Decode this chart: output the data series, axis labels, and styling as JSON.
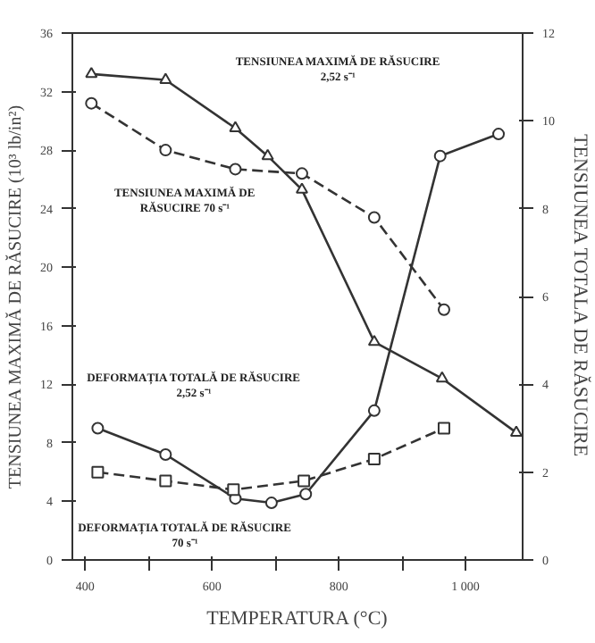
{
  "chart_data": {
    "type": "line",
    "xlabel": "TEMPERATURA (°C)",
    "ylabel": "TENSIUNEA MAXIMĂ DE RĂSUCIRE (10³ lb/in²)",
    "y2label": "TENSIUNEA TOTALA DE RĂSUCIRE",
    "xlim": [
      380,
      1090
    ],
    "xticks": [
      400,
      {
        "value": 500,
        "label": null
      },
      600,
      {
        "value": 700,
        "label": null
      },
      800,
      {
        "value": 900,
        "label": null
      },
      {
        "value": 1000,
        "label": "1 000"
      }
    ],
    "ylim": [
      0,
      36
    ],
    "yticks": [
      0,
      4,
      8,
      12,
      16,
      20,
      24,
      28,
      32,
      36
    ],
    "y2lim": [
      0,
      12
    ],
    "y2ticks": [
      0,
      2,
      4,
      6,
      8,
      10,
      12
    ],
    "grid": false,
    "series": [
      {
        "color": "#333333",
        "marker": "triangle",
        "line_style": "solid",
        "x": [
          410,
          527,
          637,
          688,
          742,
          856,
          963,
          1080
        ],
        "values": [
          33.2,
          32.8,
          29.5,
          27.6,
          25.3,
          14.9,
          12.4,
          8.7
        ]
      },
      {
        "color": "#333333",
        "marker": "circle",
        "line_style": "dashed",
        "x": [
          410,
          527,
          637,
          742,
          856,
          966
        ],
        "values": [
          31.2,
          28.0,
          26.7,
          26.4,
          23.4,
          17.1
        ]
      },
      {
        "color": "#333333",
        "marker": "circle",
        "line_style": "solid",
        "axis": "y2",
        "x": [
          420,
          527,
          637,
          694,
          748,
          856,
          960,
          1052
        ],
        "values": [
          3.0,
          2.4,
          1.4,
          1.3,
          1.5,
          3.4,
          9.2,
          9.7
        ]
      },
      {
        "color": "#333333",
        "marker": "square",
        "line_style": "dashed",
        "axis": "y2",
        "x": [
          420,
          527,
          634,
          745,
          856,
          966
        ],
        "values": [
          2.0,
          1.8,
          1.6,
          1.8,
          2.3,
          3.0
        ]
      }
    ],
    "annotations": [
      "TENSIUNEA MAXIMĂ DE RĂSUCIRE\n2,52 s⁻¹",
      "TENSIUNEA MAXIMĂ DE\nRĂSUCIRE 70 s⁻¹",
      "DEFORMAȚIA TOTALĂ DE RĂSUCIRE\n2,52 s⁻¹",
      "DEFORMAȚIA TOTALĂ DE RĂSUCIRE\n70 s⁻¹"
    ]
  }
}
